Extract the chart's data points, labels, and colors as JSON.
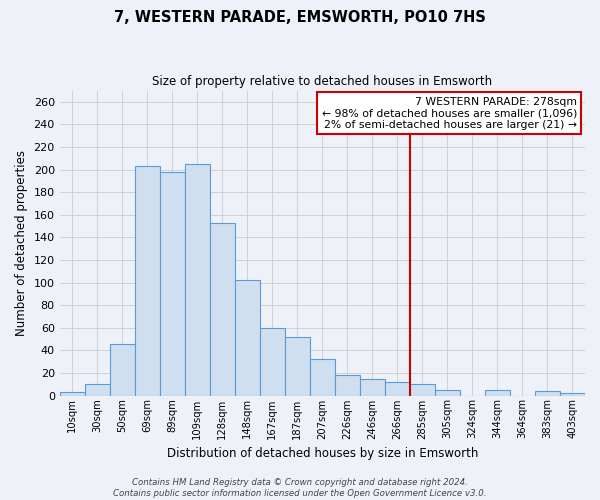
{
  "title": "7, WESTERN PARADE, EMSWORTH, PO10 7HS",
  "subtitle": "Size of property relative to detached houses in Emsworth",
  "xlabel": "Distribution of detached houses by size in Emsworth",
  "ylabel": "Number of detached properties",
  "bar_labels": [
    "10sqm",
    "30sqm",
    "50sqm",
    "69sqm",
    "89sqm",
    "109sqm",
    "128sqm",
    "148sqm",
    "167sqm",
    "187sqm",
    "207sqm",
    "226sqm",
    "246sqm",
    "266sqm",
    "285sqm",
    "305sqm",
    "324sqm",
    "344sqm",
    "364sqm",
    "383sqm",
    "403sqm"
  ],
  "bar_heights": [
    3,
    10,
    46,
    203,
    198,
    205,
    153,
    102,
    60,
    52,
    32,
    18,
    15,
    12,
    10,
    5,
    0,
    5,
    0,
    4,
    2
  ],
  "bar_color": "#cfdff0",
  "bar_edge_color": "#5b9bd5",
  "vline_color": "#cc0000",
  "vline_bar_index": 14,
  "ylim": [
    0,
    270
  ],
  "yticks": [
    0,
    20,
    40,
    60,
    80,
    100,
    120,
    140,
    160,
    180,
    200,
    220,
    240,
    260
  ],
  "annotation_title": "7 WESTERN PARADE: 278sqm",
  "annotation_line1": "← 98% of detached houses are smaller (1,096)",
  "annotation_line2": "2% of semi-detached houses are larger (21) →",
  "footer_line1": "Contains HM Land Registry data © Crown copyright and database right 2024.",
  "footer_line2": "Contains public sector information licensed under the Open Government Licence v3.0.",
  "grid_color": "#cccccc",
  "plot_bg_color": "#eef2f8",
  "fig_bg_color": "#eef2f8",
  "right_bg_color": "#e8eef5"
}
